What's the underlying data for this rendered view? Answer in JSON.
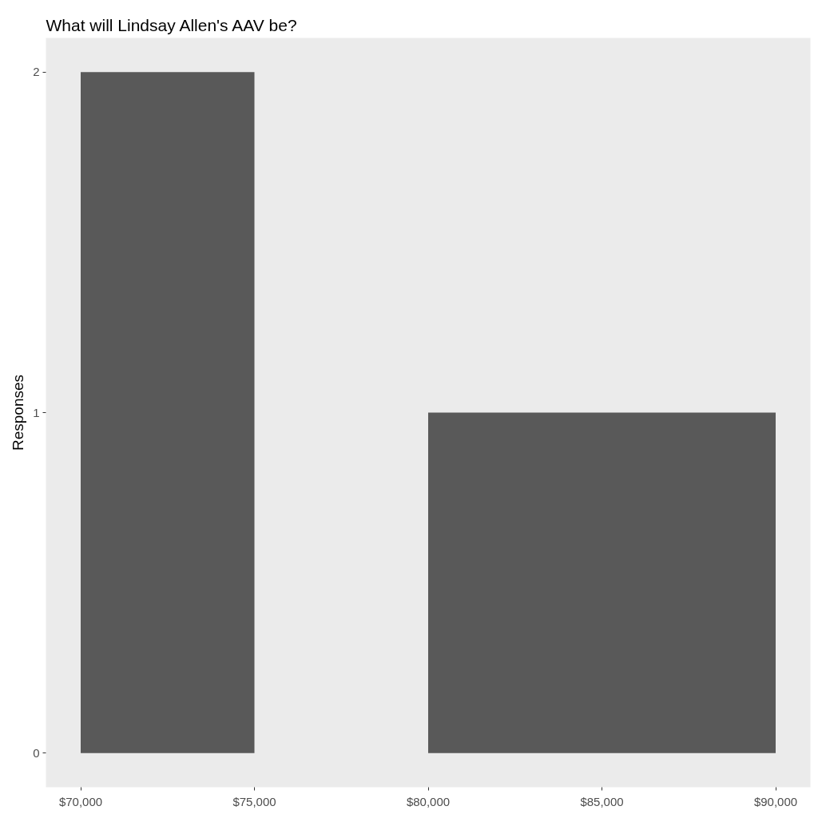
{
  "chart_data": {
    "type": "histogram",
    "title": "What will Lindsay Allen's AAV be?",
    "ylabel": "Responses",
    "bins": [
      70000,
      75000,
      80000,
      90000
    ],
    "values": [
      2,
      0,
      1
    ],
    "color": "#595959",
    "xlim": [
      69000,
      91000
    ],
    "xticks": [
      {
        "value": 70000,
        "label": "$70,000"
      },
      {
        "value": 75000,
        "label": "$75,000"
      },
      {
        "value": 80000,
        "label": "$80,000"
      },
      {
        "value": 85000,
        "label": "$85,000"
      },
      {
        "value": 90000,
        "label": "$90,000"
      }
    ],
    "ylim": [
      -0.1,
      2.1
    ],
    "yticks": [
      0,
      1,
      2
    ]
  }
}
